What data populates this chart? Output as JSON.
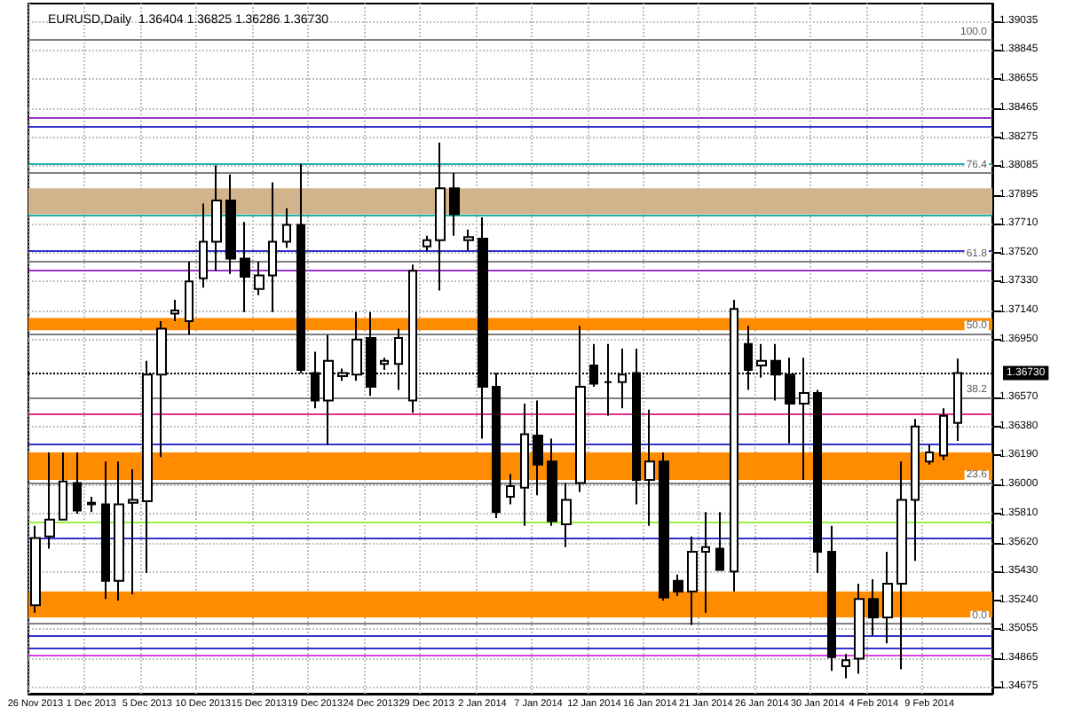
{
  "chart_data": {
    "type": "candlestick",
    "title": "EURUSD,Daily  1.36404 1.36825 1.36286 1.36730",
    "categories": [
      "26 Nov 2013",
      null,
      null,
      null,
      "1 Dec 2013",
      null,
      null,
      null,
      "5 Dec 2013",
      null,
      null,
      null,
      "10 Dec 2013",
      null,
      null,
      null,
      "15 Dec 2013",
      null,
      null,
      null,
      "19 Dec 2013",
      null,
      null,
      null,
      "24 Dec 2013",
      null,
      null,
      null,
      "29 Dec 2013",
      null,
      null,
      null,
      "2 Jan 2014",
      null,
      null,
      null,
      "7 Jan 2014",
      null,
      null,
      null,
      "12 Jan 2014",
      null,
      null,
      null,
      "16 Jan 2014",
      null,
      null,
      null,
      "21 Jan 2014",
      null,
      null,
      null,
      "26 Jan 2014",
      null,
      null,
      null,
      "30 Jan 2014",
      null,
      null,
      null,
      "4 Feb 2014",
      null,
      null,
      null,
      "9 Feb 2014",
      null,
      null
    ],
    "ohlc": [
      [
        1.3521,
        1.3573,
        1.3516,
        1.3565
      ],
      [
        1.3566,
        1.3621,
        1.3558,
        1.3577
      ],
      [
        1.3577,
        1.3621,
        1.3577,
        1.3602
      ],
      [
        1.3601,
        1.3621,
        1.3581,
        1.3583
      ],
      [
        1.3587,
        1.3592,
        1.3582,
        1.3588
      ],
      [
        1.3587,
        1.3615,
        1.3525,
        1.3537
      ],
      [
        1.3537,
        1.3615,
        1.3524,
        1.3587
      ],
      [
        1.3588,
        1.361,
        1.3528,
        1.359
      ],
      [
        1.3589,
        1.3681,
        1.3542,
        1.3672
      ],
      [
        1.3672,
        1.3707,
        1.3618,
        1.3702
      ],
      [
        1.3712,
        1.3721,
        1.3707,
        1.3714
      ],
      [
        1.3707,
        1.3746,
        1.3698,
        1.3733
      ],
      [
        1.3735,
        1.3784,
        1.3729,
        1.3759
      ],
      [
        1.3759,
        1.3809,
        1.374,
        1.3786
      ],
      [
        1.3786,
        1.3803,
        1.3738,
        1.3748
      ],
      [
        1.3748,
        1.3772,
        1.3713,
        1.3736
      ],
      [
        1.3728,
        1.3746,
        1.3724,
        1.3737
      ],
      [
        1.3737,
        1.3798,
        1.3713,
        1.3759
      ],
      [
        1.3759,
        1.3781,
        1.3755,
        1.377
      ],
      [
        1.377,
        1.381,
        1.3673,
        1.3675
      ],
      [
        1.3673,
        1.3687,
        1.365,
        1.3655
      ],
      [
        1.3655,
        1.3698,
        1.3626,
        1.3681
      ],
      [
        1.3671,
        1.3676,
        1.3668,
        1.3673
      ],
      [
        1.3672,
        1.3713,
        1.3668,
        1.3695
      ],
      [
        1.3696,
        1.3713,
        1.3658,
        1.3664
      ],
      [
        1.3679,
        1.3683,
        1.3675,
        1.3681
      ],
      [
        1.3679,
        1.3702,
        1.3662,
        1.3696
      ],
      [
        1.3655,
        1.3744,
        1.3647,
        1.374
      ],
      [
        1.3756,
        1.3763,
        1.3753,
        1.376
      ],
      [
        1.376,
        1.3824,
        1.3727,
        1.3794
      ],
      [
        1.3794,
        1.3804,
        1.3763,
        1.3777
      ],
      [
        1.376,
        1.3767,
        1.3753,
        1.3762
      ],
      [
        1.3761,
        1.3775,
        1.363,
        1.3664
      ],
      [
        1.3664,
        1.3673,
        1.3578,
        1.3582
      ],
      [
        1.3592,
        1.3607,
        1.3587,
        1.3599
      ],
      [
        1.3598,
        1.3653,
        1.3573,
        1.3633
      ],
      [
        1.3632,
        1.3655,
        1.3593,
        1.3613
      ],
      [
        1.3615,
        1.363,
        1.3573,
        1.3576
      ],
      [
        1.3574,
        1.3601,
        1.3559,
        1.359
      ],
      [
        1.3601,
        1.3704,
        1.3595,
        1.3664
      ],
      [
        1.3678,
        1.3692,
        1.3664,
        1.3666
      ],
      [
        1.3667,
        1.3692,
        1.3645,
        1.3667
      ],
      [
        1.3667,
        1.3689,
        1.365,
        1.3672
      ],
      [
        1.3673,
        1.3689,
        1.3587,
        1.3603
      ],
      [
        1.3603,
        1.3649,
        1.3573,
        1.3615
      ],
      [
        1.3615,
        1.3621,
        1.3524,
        1.3526
      ],
      [
        1.3537,
        1.3541,
        1.3527,
        1.353
      ],
      [
        1.353,
        1.3566,
        1.3508,
        1.3556
      ],
      [
        1.3556,
        1.3582,
        1.3516,
        1.3559
      ],
      [
        1.3558,
        1.3582,
        1.3544,
        1.3544
      ],
      [
        1.3543,
        1.3721,
        1.353,
        1.3715
      ],
      [
        1.3692,
        1.3704,
        1.3662,
        1.3675
      ],
      [
        1.3678,
        1.3692,
        1.367,
        1.3681
      ],
      [
        1.3681,
        1.3692,
        1.3655,
        1.3672
      ],
      [
        1.3672,
        1.3683,
        1.3627,
        1.3653
      ],
      [
        1.3653,
        1.3683,
        1.3603,
        1.366
      ],
      [
        1.366,
        1.3662,
        1.3542,
        1.3556
      ],
      [
        1.3556,
        1.3573,
        1.3478,
        1.3487
      ],
      [
        1.3481,
        1.3489,
        1.3473,
        1.3485
      ],
      [
        1.3486,
        1.3535,
        1.3476,
        1.3525
      ],
      [
        1.3525,
        1.3538,
        1.3501,
        1.3513
      ],
      [
        1.3513,
        1.3556,
        1.3496,
        1.3535
      ],
      [
        1.3535,
        1.3615,
        1.3479,
        1.359
      ],
      [
        1.359,
        1.3643,
        1.355,
        1.3638
      ],
      [
        1.3615,
        1.3626,
        1.3613,
        1.3621
      ],
      [
        1.3619,
        1.365,
        1.3616,
        1.3645
      ],
      [
        1.36404,
        1.36825,
        1.36286,
        1.3673
      ]
    ],
    "ylim": [
      1.3463,
      1.3915
    ],
    "yticks": [
      {
        "value": 1.34675,
        "label": "1.34675"
      },
      {
        "value": 1.34865,
        "label": "1.34865"
      },
      {
        "value": 1.35055,
        "label": "1.35055"
      },
      {
        "value": 1.3524,
        "label": "1.35240"
      },
      {
        "value": 1.3543,
        "label": "1.35430"
      },
      {
        "value": 1.3562,
        "label": "1.35620"
      },
      {
        "value": 1.3581,
        "label": "1.35810"
      },
      {
        "value": 1.36,
        "label": "1.36000"
      },
      {
        "value": 1.3619,
        "label": "1.36190"
      },
      {
        "value": 1.3638,
        "label": "1.36380"
      },
      {
        "value": 1.3657,
        "label": "1.36570"
      },
      {
        "value": 1.3695,
        "label": "1.36950"
      },
      {
        "value": 1.3714,
        "label": "1.37140"
      },
      {
        "value": 1.3733,
        "label": "1.37330"
      },
      {
        "value": 1.3752,
        "label": "1.37520"
      },
      {
        "value": 1.3771,
        "label": "1.37710"
      },
      {
        "value": 1.37895,
        "label": "1.37895"
      },
      {
        "value": 1.38085,
        "label": "1.38085"
      },
      {
        "value": 1.38275,
        "label": "1.38275"
      },
      {
        "value": 1.38465,
        "label": "1.38465"
      },
      {
        "value": 1.38655,
        "label": "1.38655"
      },
      {
        "value": 1.38845,
        "label": "1.38845"
      },
      {
        "value": 1.39035,
        "label": "1.39035"
      }
    ],
    "grid": true,
    "bands": [
      {
        "axis": "y",
        "from": 1.3603,
        "to": 1.3621,
        "color": "#ff8c00"
      },
      {
        "axis": "y",
        "from": 1.3513,
        "to": 1.353,
        "color": "#ff8c00"
      },
      {
        "axis": "y",
        "from": 1.3701,
        "to": 1.3709,
        "color": "#ff8c00"
      },
      {
        "axis": "y",
        "from": 1.3777,
        "to": 1.3794,
        "color": "#d2b48c"
      }
    ],
    "annotations": [
      {
        "text": "100.0",
        "y": 1.3891
      },
      {
        "text": "76.4",
        "y": 1.3804
      },
      {
        "text": "61.8",
        "y": 1.3746
      },
      {
        "text": "50.0",
        "y": 1.3699
      },
      {
        "text": "38.2",
        "y": 1.3657
      },
      {
        "text": "23.6",
        "y": 1.3601
      },
      {
        "text": "0.0",
        "y": 1.3509
      }
    ],
    "ref_lines": [
      {
        "axis": "y",
        "value": 1.3891,
        "label": null,
        "color": "#808080"
      },
      {
        "axis": "y",
        "value": 1.3804,
        "label": null,
        "color": "#808080"
      },
      {
        "axis": "y",
        "value": 1.3746,
        "label": null,
        "color": "#808080"
      },
      {
        "axis": "y",
        "value": 1.3699,
        "label": null,
        "color": "#808080"
      },
      {
        "axis": "y",
        "value": 1.3657,
        "label": null,
        "color": "#808080"
      },
      {
        "axis": "y",
        "value": 1.3601,
        "label": null,
        "color": "#808080"
      },
      {
        "axis": "y",
        "value": 1.3509,
        "label": null,
        "color": "#808080"
      },
      {
        "axis": "y",
        "value": 1.384,
        "label": null,
        "color": "#9933cc"
      },
      {
        "axis": "y",
        "value": 1.3834,
        "label": null,
        "color": "#3333cc"
      },
      {
        "axis": "y",
        "value": 1.381,
        "label": null,
        "color": "#20b2aa"
      },
      {
        "axis": "y",
        "value": 1.3777,
        "label": null,
        "color": "#20b2aa"
      },
      {
        "axis": "y",
        "value": 1.3753,
        "label": null,
        "color": "#3333cc"
      },
      {
        "axis": "y",
        "value": 1.374,
        "label": null,
        "color": "#9933cc"
      },
      {
        "axis": "y",
        "value": 1.3646,
        "label": null,
        "color": "#e0308a"
      },
      {
        "axis": "y",
        "value": 1.3627,
        "label": null,
        "color": "#3333cc"
      },
      {
        "axis": "y",
        "value": 1.3576,
        "label": null,
        "color": "#99ee44"
      },
      {
        "axis": "y",
        "value": 1.3565,
        "label": null,
        "color": "#3333cc"
      },
      {
        "axis": "y",
        "value": 1.3501,
        "label": null,
        "color": "#3333cc"
      },
      {
        "axis": "y",
        "value": 1.3493,
        "label": null,
        "color": "#3333cc"
      },
      {
        "axis": "y",
        "value": 1.3488,
        "label": null,
        "color": "#e040e0"
      },
      {
        "axis": "y",
        "value": 1.3673,
        "label": "1.36730",
        "color": "#000000",
        "line_style": "dotted"
      }
    ]
  }
}
